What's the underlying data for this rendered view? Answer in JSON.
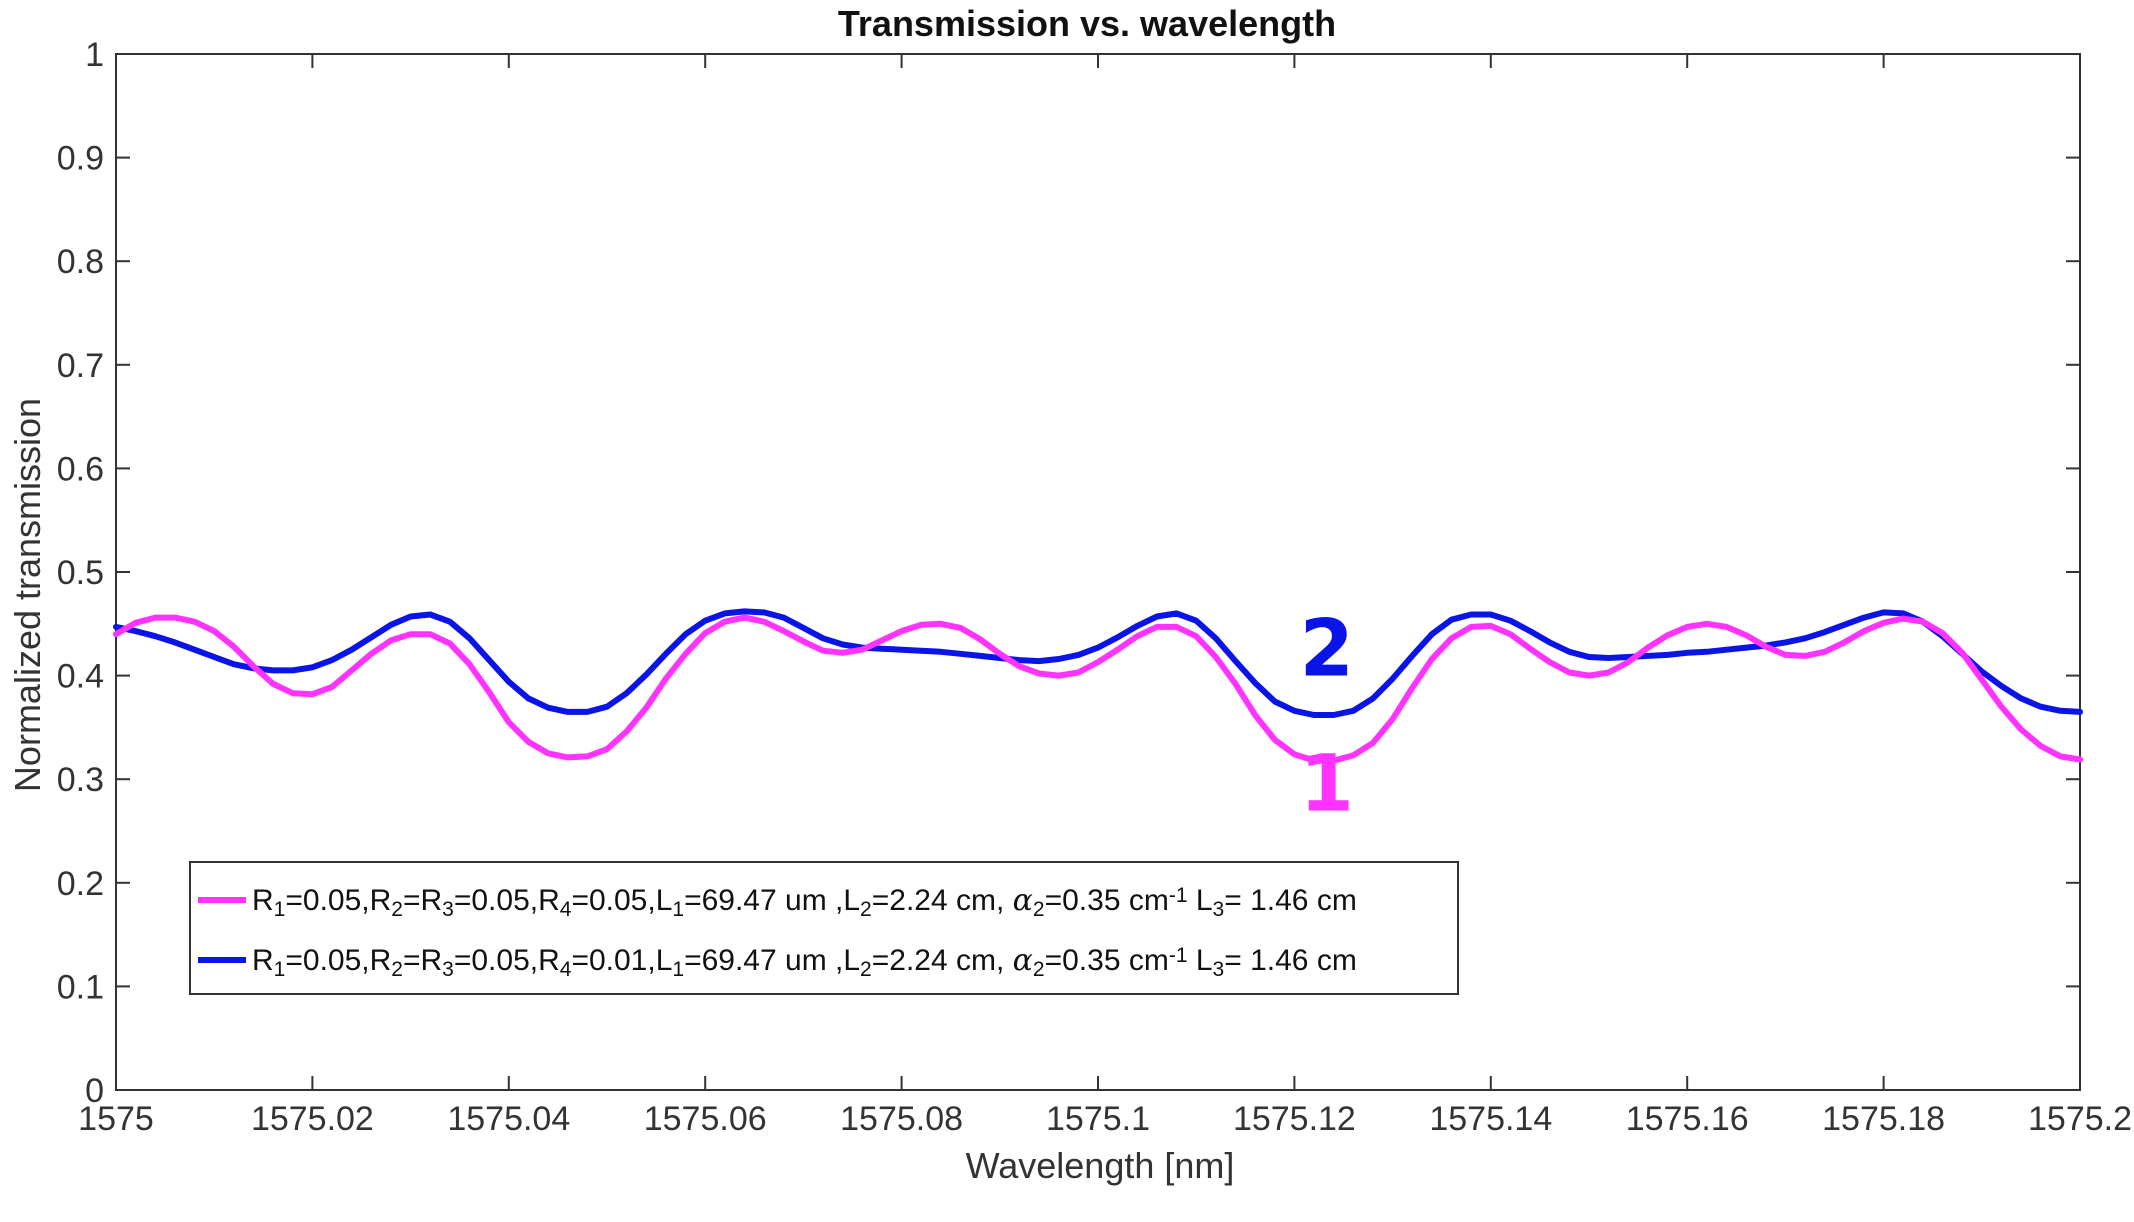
{
  "chart_data": {
    "type": "line",
    "title": "Transmission vs. wavelength",
    "xlabel": "Wavelength [nm]",
    "ylabel": "Normalized transmission",
    "xlim": [
      1575,
      1575.2
    ],
    "ylim": [
      0,
      1
    ],
    "x_ticks": [
      "1575",
      "1575.02",
      "1575.04",
      "1575.06",
      "1575.08",
      "1575.1",
      "1575.12",
      "1575.14",
      "1575.16",
      "1575.18",
      "1575.2"
    ],
    "y_ticks": [
      "0",
      "0.1",
      "0.2",
      "0.3",
      "0.4",
      "0.5",
      "0.6",
      "0.7",
      "0.8",
      "0.9",
      "1"
    ],
    "grid": false,
    "legend_position": "lower-left",
    "series": [
      {
        "color": "#ff33ff",
        "legend_parts": [
          {
            "t": "R"
          },
          {
            "t": "1",
            "sub": true
          },
          {
            "t": "=0.05,R"
          },
          {
            "t": "2",
            "sub": true
          },
          {
            "t": "=R"
          },
          {
            "t": "3",
            "sub": true
          },
          {
            "t": "=0.05,R"
          },
          {
            "t": "4",
            "sub": true
          },
          {
            "t": "=0.05,L"
          },
          {
            "t": "1",
            "sub": true
          },
          {
            "t": "=69.47 um ,L"
          },
          {
            "t": "2",
            "sub": true
          },
          {
            "t": "=2.24 cm, "
          },
          {
            "t": "α",
            "italic": true
          },
          {
            "t": "2",
            "sub": true
          },
          {
            "t": "=0.35 cm"
          },
          {
            "t": "-1",
            "sup": true
          },
          {
            "t": " L"
          },
          {
            "t": "3",
            "sub": true
          },
          {
            "t": "= 1.46 cm"
          }
        ],
        "points": [
          [
            1575.0,
            0.44
          ],
          [
            1575.002,
            0.451
          ],
          [
            1575.004,
            0.456
          ],
          [
            1575.006,
            0.456
          ],
          [
            1575.008,
            0.452
          ],
          [
            1575.01,
            0.443
          ],
          [
            1575.012,
            0.428
          ],
          [
            1575.014,
            0.409
          ],
          [
            1575.016,
            0.392
          ],
          [
            1575.018,
            0.383
          ],
          [
            1575.02,
            0.382
          ],
          [
            1575.022,
            0.389
          ],
          [
            1575.024,
            0.405
          ],
          [
            1575.026,
            0.421
          ],
          [
            1575.028,
            0.434
          ],
          [
            1575.03,
            0.44
          ],
          [
            1575.032,
            0.44
          ],
          [
            1575.034,
            0.431
          ],
          [
            1575.036,
            0.411
          ],
          [
            1575.038,
            0.384
          ],
          [
            1575.04,
            0.355
          ],
          [
            1575.042,
            0.336
          ],
          [
            1575.044,
            0.325
          ],
          [
            1575.046,
            0.321
          ],
          [
            1575.048,
            0.322
          ],
          [
            1575.05,
            0.329
          ],
          [
            1575.052,
            0.346
          ],
          [
            1575.054,
            0.369
          ],
          [
            1575.056,
            0.397
          ],
          [
            1575.058,
            0.421
          ],
          [
            1575.06,
            0.441
          ],
          [
            1575.062,
            0.452
          ],
          [
            1575.064,
            0.456
          ],
          [
            1575.066,
            0.452
          ],
          [
            1575.068,
            0.443
          ],
          [
            1575.07,
            0.433
          ],
          [
            1575.072,
            0.424
          ],
          [
            1575.074,
            0.422
          ],
          [
            1575.076,
            0.425
          ],
          [
            1575.078,
            0.434
          ],
          [
            1575.08,
            0.443
          ],
          [
            1575.082,
            0.449
          ],
          [
            1575.084,
            0.45
          ],
          [
            1575.086,
            0.446
          ],
          [
            1575.088,
            0.435
          ],
          [
            1575.09,
            0.421
          ],
          [
            1575.092,
            0.409
          ],
          [
            1575.094,
            0.402
          ],
          [
            1575.096,
            0.4
          ],
          [
            1575.098,
            0.403
          ],
          [
            1575.1,
            0.413
          ],
          [
            1575.102,
            0.425
          ],
          [
            1575.104,
            0.438
          ],
          [
            1575.106,
            0.447
          ],
          [
            1575.108,
            0.447
          ],
          [
            1575.11,
            0.438
          ],
          [
            1575.112,
            0.418
          ],
          [
            1575.114,
            0.392
          ],
          [
            1575.116,
            0.362
          ],
          [
            1575.118,
            0.338
          ],
          [
            1575.12,
            0.324
          ],
          [
            1575.122,
            0.318
          ],
          [
            1575.124,
            0.318
          ],
          [
            1575.126,
            0.323
          ],
          [
            1575.128,
            0.335
          ],
          [
            1575.13,
            0.358
          ],
          [
            1575.132,
            0.388
          ],
          [
            1575.134,
            0.416
          ],
          [
            1575.136,
            0.436
          ],
          [
            1575.138,
            0.447
          ],
          [
            1575.14,
            0.448
          ],
          [
            1575.142,
            0.44
          ],
          [
            1575.144,
            0.426
          ],
          [
            1575.146,
            0.413
          ],
          [
            1575.148,
            0.403
          ],
          [
            1575.15,
            0.4
          ],
          [
            1575.152,
            0.403
          ],
          [
            1575.154,
            0.413
          ],
          [
            1575.156,
            0.427
          ],
          [
            1575.158,
            0.439
          ],
          [
            1575.16,
            0.447
          ],
          [
            1575.162,
            0.45
          ],
          [
            1575.164,
            0.447
          ],
          [
            1575.166,
            0.439
          ],
          [
            1575.168,
            0.428
          ],
          [
            1575.17,
            0.42
          ],
          [
            1575.172,
            0.419
          ],
          [
            1575.174,
            0.423
          ],
          [
            1575.176,
            0.432
          ],
          [
            1575.178,
            0.443
          ],
          [
            1575.18,
            0.451
          ],
          [
            1575.182,
            0.455
          ],
          [
            1575.184,
            0.452
          ],
          [
            1575.186,
            0.441
          ],
          [
            1575.188,
            0.422
          ],
          [
            1575.19,
            0.396
          ],
          [
            1575.192,
            0.37
          ],
          [
            1575.194,
            0.348
          ],
          [
            1575.196,
            0.332
          ],
          [
            1575.198,
            0.322
          ],
          [
            1575.2,
            0.319
          ]
        ]
      },
      {
        "color": "#0a14e6",
        "legend_parts": [
          {
            "t": "R"
          },
          {
            "t": "1",
            "sub": true
          },
          {
            "t": "=0.05,R"
          },
          {
            "t": "2",
            "sub": true
          },
          {
            "t": "=R"
          },
          {
            "t": "3",
            "sub": true
          },
          {
            "t": "=0.05,R"
          },
          {
            "t": "4",
            "sub": true
          },
          {
            "t": "=0.01,L"
          },
          {
            "t": "1",
            "sub": true
          },
          {
            "t": "=69.47 um ,L"
          },
          {
            "t": "2",
            "sub": true
          },
          {
            "t": "=2.24 cm, "
          },
          {
            "t": "α",
            "italic": true
          },
          {
            "t": "2",
            "sub": true
          },
          {
            "t": "=0.35 cm"
          },
          {
            "t": "-1",
            "sup": true
          },
          {
            "t": " L"
          },
          {
            "t": "3",
            "sub": true
          },
          {
            "t": "= 1.46 cm"
          }
        ],
        "points": [
          [
            1575.0,
            0.447
          ],
          [
            1575.002,
            0.443
          ],
          [
            1575.004,
            0.438
          ],
          [
            1575.006,
            0.432
          ],
          [
            1575.008,
            0.425
          ],
          [
            1575.01,
            0.418
          ],
          [
            1575.012,
            0.411
          ],
          [
            1575.014,
            0.407
          ],
          [
            1575.016,
            0.405
          ],
          [
            1575.018,
            0.405
          ],
          [
            1575.02,
            0.408
          ],
          [
            1575.022,
            0.415
          ],
          [
            1575.024,
            0.425
          ],
          [
            1575.026,
            0.437
          ],
          [
            1575.028,
            0.449
          ],
          [
            1575.03,
            0.457
          ],
          [
            1575.032,
            0.459
          ],
          [
            1575.034,
            0.452
          ],
          [
            1575.036,
            0.436
          ],
          [
            1575.038,
            0.415
          ],
          [
            1575.04,
            0.394
          ],
          [
            1575.042,
            0.378
          ],
          [
            1575.044,
            0.369
          ],
          [
            1575.046,
            0.365
          ],
          [
            1575.048,
            0.365
          ],
          [
            1575.05,
            0.37
          ],
          [
            1575.052,
            0.383
          ],
          [
            1575.054,
            0.401
          ],
          [
            1575.056,
            0.421
          ],
          [
            1575.058,
            0.44
          ],
          [
            1575.06,
            0.453
          ],
          [
            1575.062,
            0.46
          ],
          [
            1575.064,
            0.462
          ],
          [
            1575.066,
            0.461
          ],
          [
            1575.068,
            0.456
          ],
          [
            1575.07,
            0.446
          ],
          [
            1575.072,
            0.436
          ],
          [
            1575.074,
            0.43
          ],
          [
            1575.076,
            0.427
          ],
          [
            1575.078,
            0.426
          ],
          [
            1575.08,
            0.425
          ],
          [
            1575.082,
            0.424
          ],
          [
            1575.084,
            0.423
          ],
          [
            1575.086,
            0.421
          ],
          [
            1575.088,
            0.419
          ],
          [
            1575.09,
            0.417
          ],
          [
            1575.092,
            0.415
          ],
          [
            1575.094,
            0.414
          ],
          [
            1575.096,
            0.416
          ],
          [
            1575.098,
            0.42
          ],
          [
            1575.1,
            0.427
          ],
          [
            1575.102,
            0.437
          ],
          [
            1575.104,
            0.448
          ],
          [
            1575.106,
            0.457
          ],
          [
            1575.108,
            0.46
          ],
          [
            1575.11,
            0.453
          ],
          [
            1575.112,
            0.436
          ],
          [
            1575.114,
            0.414
          ],
          [
            1575.116,
            0.393
          ],
          [
            1575.118,
            0.375
          ],
          [
            1575.12,
            0.366
          ],
          [
            1575.122,
            0.362
          ],
          [
            1575.124,
            0.362
          ],
          [
            1575.126,
            0.366
          ],
          [
            1575.128,
            0.378
          ],
          [
            1575.13,
            0.397
          ],
          [
            1575.132,
            0.419
          ],
          [
            1575.134,
            0.44
          ],
          [
            1575.136,
            0.454
          ],
          [
            1575.138,
            0.459
          ],
          [
            1575.14,
            0.459
          ],
          [
            1575.142,
            0.453
          ],
          [
            1575.144,
            0.443
          ],
          [
            1575.146,
            0.432
          ],
          [
            1575.148,
            0.423
          ],
          [
            1575.15,
            0.418
          ],
          [
            1575.152,
            0.417
          ],
          [
            1575.154,
            0.418
          ],
          [
            1575.156,
            0.419
          ],
          [
            1575.158,
            0.42
          ],
          [
            1575.16,
            0.422
          ],
          [
            1575.162,
            0.423
          ],
          [
            1575.164,
            0.425
          ],
          [
            1575.166,
            0.427
          ],
          [
            1575.168,
            0.429
          ],
          [
            1575.17,
            0.432
          ],
          [
            1575.172,
            0.436
          ],
          [
            1575.174,
            0.442
          ],
          [
            1575.176,
            0.449
          ],
          [
            1575.178,
            0.456
          ],
          [
            1575.18,
            0.461
          ],
          [
            1575.182,
            0.46
          ],
          [
            1575.184,
            0.452
          ],
          [
            1575.186,
            0.438
          ],
          [
            1575.188,
            0.421
          ],
          [
            1575.19,
            0.404
          ],
          [
            1575.192,
            0.39
          ],
          [
            1575.194,
            0.378
          ],
          [
            1575.196,
            0.37
          ],
          [
            1575.198,
            0.366
          ],
          [
            1575.2,
            0.365
          ]
        ]
      }
    ],
    "annotations": [
      {
        "text": "1",
        "color": "#ff33ff",
        "x": 1575.1233,
        "y": 0.27
      },
      {
        "text": "2",
        "color": "#0a14e6",
        "x": 1575.1233,
        "y": 0.4
      }
    ]
  }
}
